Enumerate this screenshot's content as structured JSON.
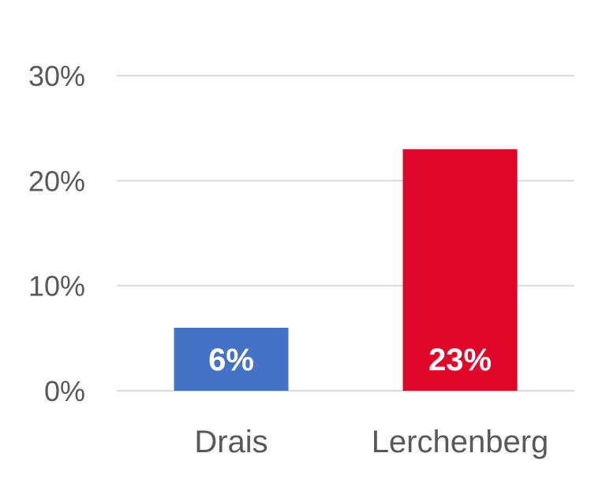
{
  "chart_data": {
    "type": "bar",
    "categories": [
      "Drais",
      "Lerchenberg"
    ],
    "values": [
      6,
      23
    ],
    "data_labels": [
      "6%",
      "23%"
    ],
    "bar_colors": [
      "#4472C4",
      "#E0062A"
    ],
    "yticks": [
      {
        "value": 0,
        "label": "0%"
      },
      {
        "value": 10,
        "label": "10%"
      },
      {
        "value": 20,
        "label": "20%"
      },
      {
        "value": 30,
        "label": "30%"
      }
    ],
    "ylim": [
      0,
      30
    ],
    "grid": true,
    "gridline_color": "#D9D9D9",
    "title": "",
    "xlabel": "",
    "ylabel": ""
  }
}
